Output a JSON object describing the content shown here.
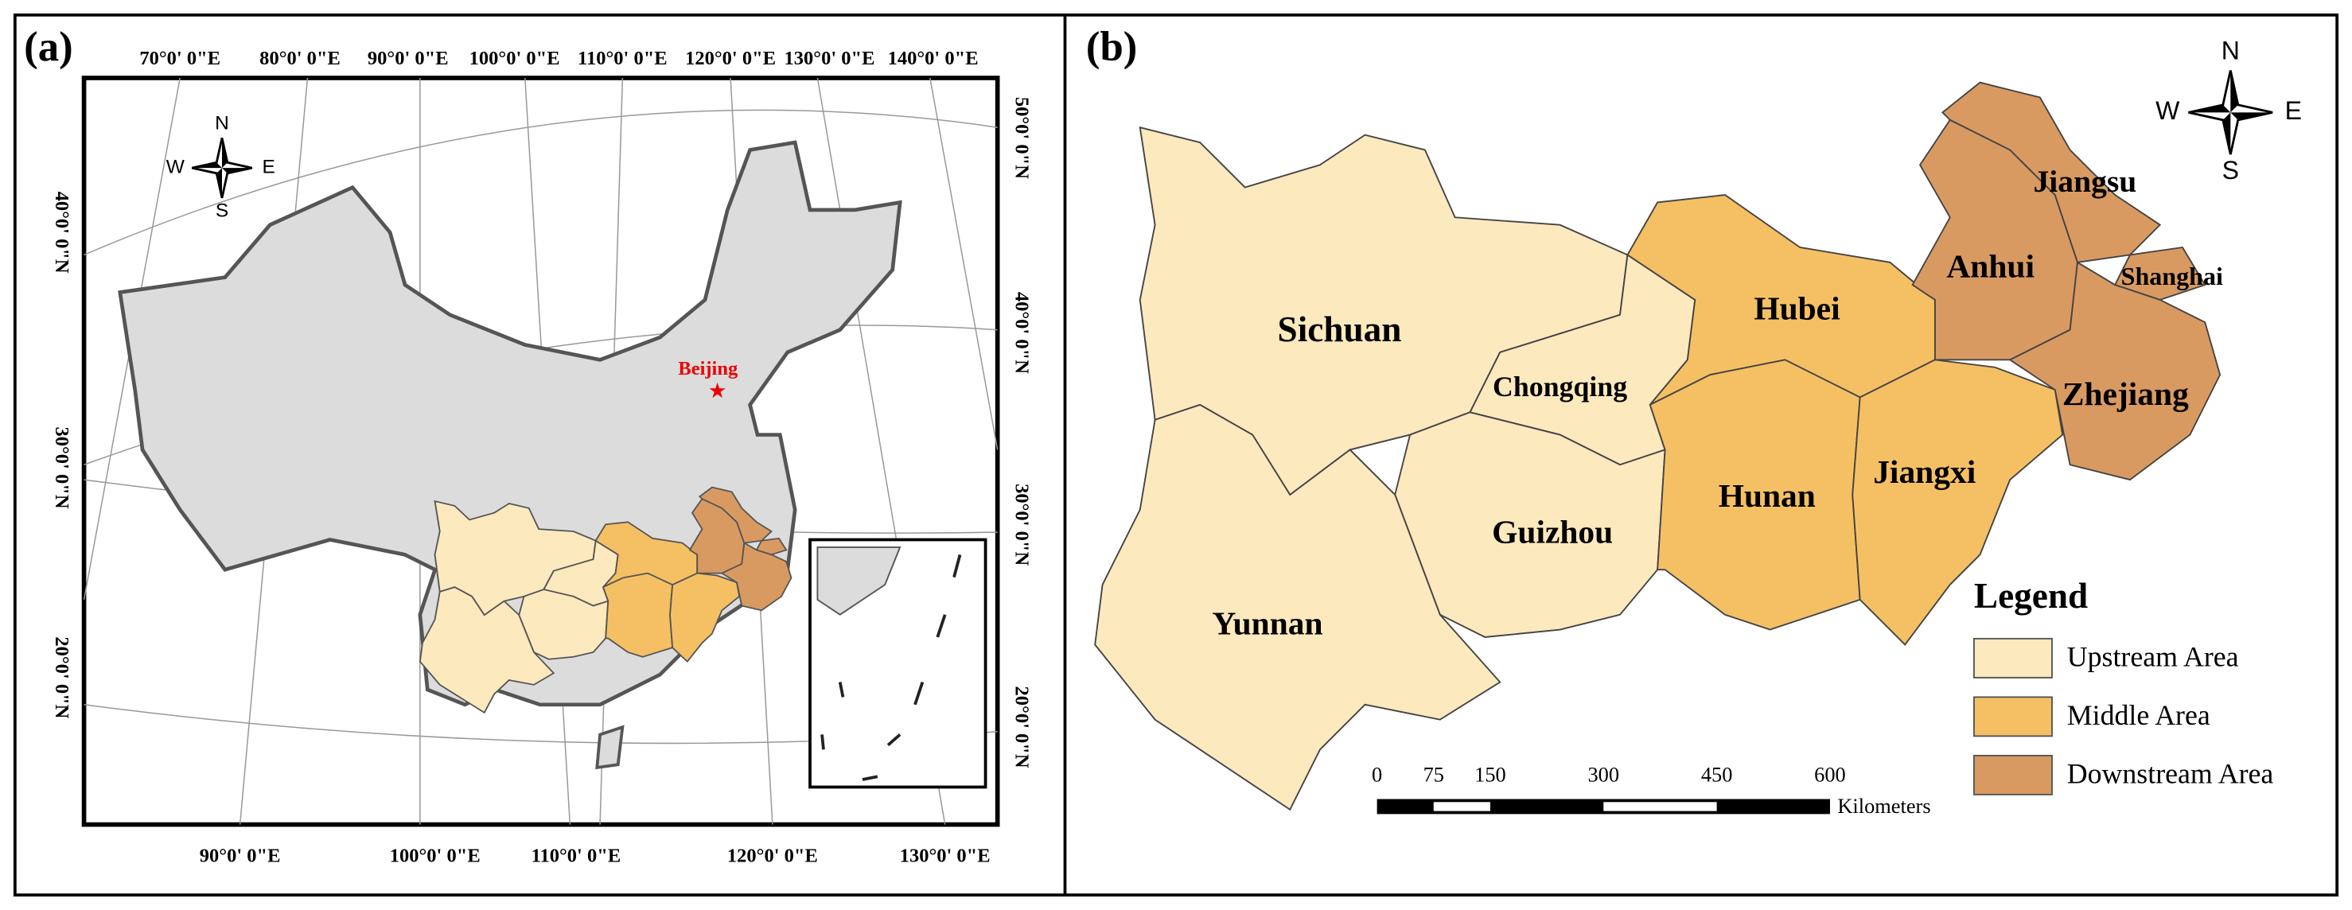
{
  "panel_a": {
    "label": "(a)",
    "top_longitudes": [
      "70°0' 0\"E",
      "80°0' 0\"E",
      "90°0' 0\"E",
      "100°0' 0\"E",
      "110°0' 0\"E",
      "120°0' 0\"E",
      "130°0' 0\"E",
      "140°0' 0\"E"
    ],
    "bottom_longitudes": [
      "90°0' 0\"E",
      "100°0' 0\"E",
      "110°0' 0\"E",
      "120°0' 0\"E",
      "130°0' 0\"E"
    ],
    "left_latitudes": [
      "40°0' 0\"N",
      "30°0' 0\"N",
      "20°0' 0\"N"
    ],
    "right_latitudes": [
      "50°0' 0\"N",
      "40°0' 0\"N",
      "30°0' 0\"N",
      "20°0' 0\"N"
    ],
    "city": "Beijing",
    "compass": {
      "n": "N",
      "s": "S",
      "w": "W",
      "e": "E"
    }
  },
  "panel_b": {
    "label": "(b)",
    "compass": {
      "n": "N",
      "s": "S",
      "w": "W",
      "e": "E"
    },
    "legend": {
      "title": "Legend",
      "items": [
        {
          "label": "Upstream Area",
          "color": "#fde9be",
          "provinces": [
            "Sichuan",
            "Chongqing",
            "Guizhou",
            "Yunnan"
          ]
        },
        {
          "label": "Middle Area",
          "color": "#f5c064",
          "provinces": [
            "Hubei",
            "Hunan",
            "Jiangxi"
          ]
        },
        {
          "label": "Downstream Area",
          "color": "#d99a62",
          "provinces": [
            "Anhui",
            "Jiangsu",
            "Shanghai",
            "Zhejiang"
          ]
        }
      ]
    },
    "scale_bar": {
      "ticks": [
        0,
        75,
        150,
        300,
        450,
        600
      ],
      "unit": "Kilometers"
    }
  }
}
